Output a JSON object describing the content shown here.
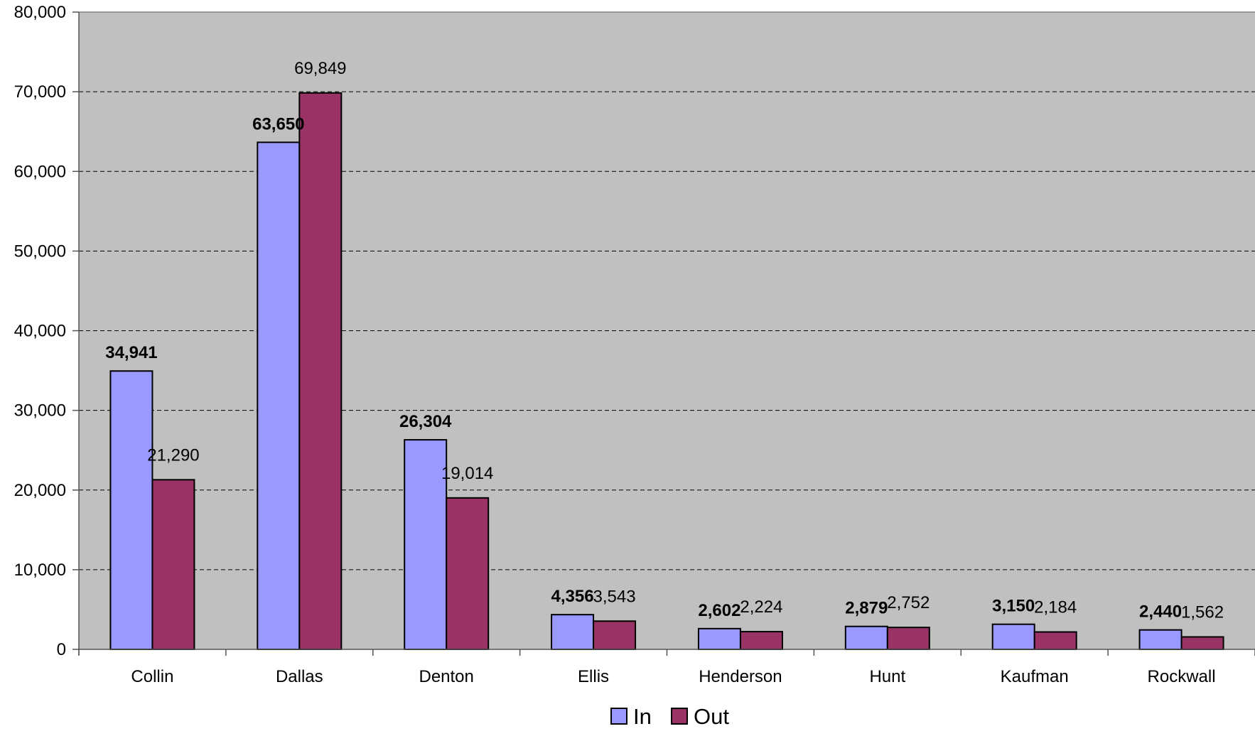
{
  "chart_data": {
    "type": "bar",
    "categories": [
      "Collin",
      "Dallas",
      "Denton",
      "Ellis",
      "Henderson",
      "Hunt",
      "Kaufman",
      "Rockwall"
    ],
    "series": [
      {
        "name": "In",
        "color": "#9999ff",
        "values": [
          34941,
          63650,
          26304,
          4356,
          2602,
          2879,
          3150,
          2440
        ]
      },
      {
        "name": "Out",
        "color": "#993366",
        "values": [
          21290,
          69849,
          19014,
          3543,
          2224,
          2752,
          2184,
          1562
        ]
      }
    ],
    "data_labels": {
      "In": [
        "34,941",
        "63,650",
        "26,304",
        "4,356",
        "2,602",
        "2,879",
        "3,150",
        "2,440"
      ],
      "Out": [
        "21,290",
        "69,849",
        "19,014",
        "3,543",
        "2,224",
        "2,752",
        "2,184",
        "1,562"
      ]
    },
    "y_ticks": [
      "0",
      "10,000",
      "20,000",
      "30,000",
      "40,000",
      "50,000",
      "60,000",
      "70,000",
      "80,000"
    ],
    "ylim": [
      0,
      80000
    ],
    "y_step": 10000,
    "grid": true,
    "plot_background": "#c0c0c0",
    "legend_position": "bottom",
    "title": "",
    "xlabel": "",
    "ylabel": ""
  }
}
